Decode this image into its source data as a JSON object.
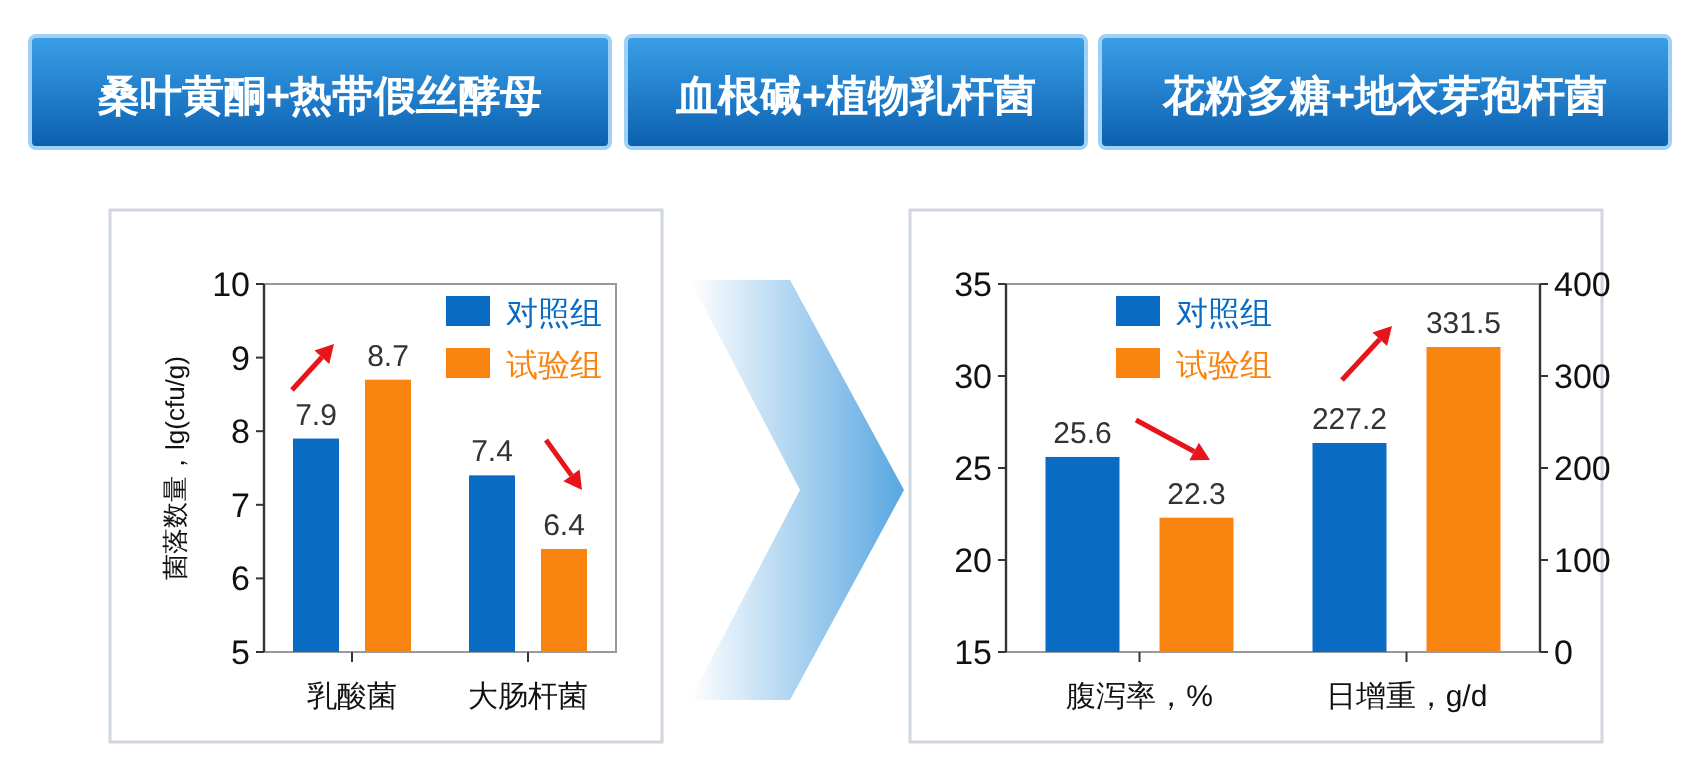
{
  "chart_data": [
    {
      "type": "other",
      "annotations": [
        "桑叶黄酮+热带假丝酵母",
        "血根碱+植物乳杆菌",
        "花粉多糖+地衣芽孢杆菌"
      ]
    },
    {
      "type": "bar",
      "ylabel": "菌落数量，lg(cfu/g)",
      "categories": [
        "乳酸菌",
        "大肠杆菌"
      ],
      "series": [
        {
          "name": "对照组",
          "color": "#0a6bc2",
          "values": [
            7.9,
            7.4
          ]
        },
        {
          "name": "试验组",
          "color": "#f98510",
          "values": [
            8.7,
            6.4
          ]
        }
      ],
      "ylim": [
        5,
        10
      ],
      "yticks": [
        5,
        6,
        7,
        8,
        9,
        10
      ],
      "data_labels": true,
      "legend": "top right"
    },
    {
      "type": "bar",
      "categories": [
        "腹泻率，%",
        "日增重，g/d"
      ],
      "series": [
        {
          "name": "对照组",
          "color": "#0a6bc2",
          "values": [
            25.6,
            null
          ]
        },
        {
          "name": "试验组",
          "color": "#f98510",
          "values": [
            22.3,
            null
          ]
        },
        {
          "color": "#0a6bc2",
          "values": [
            null,
            227.2
          ],
          "axis": "y2"
        },
        {
          "color": "#f98510",
          "values": [
            null,
            331.5
          ],
          "axis": "y2"
        }
      ],
      "ylim": [
        15,
        35
      ],
      "yticks": [
        15,
        20,
        25,
        30,
        35
      ],
      "y2lim": [
        0,
        400
      ],
      "y2ticks": [
        0,
        100,
        200,
        300,
        400
      ],
      "data_labels": true,
      "legend": "top"
    }
  ]
}
